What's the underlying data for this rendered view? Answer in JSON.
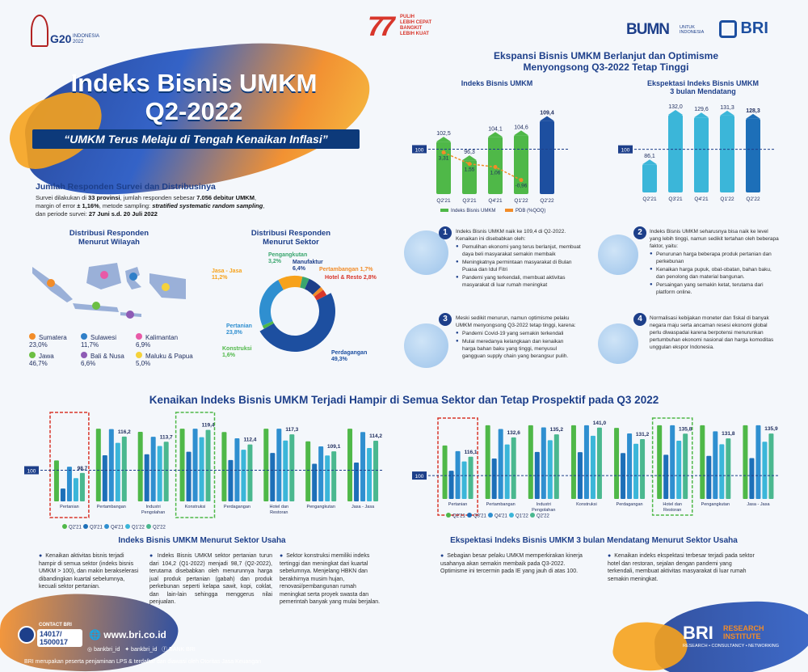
{
  "header": {
    "g20_line1": "G20",
    "g20_line2": "INDONESIA",
    "g20_year": "2022",
    "ri77_number": "77",
    "ri77_line1": "PULIH",
    "ri77_line2": "LEBIH CEPAT",
    "ri77_line3": "BANGKIT",
    "ri77_line4": "LEBIH KUAT",
    "bumn": "BUMN",
    "bumn_sub1": "UNTUK",
    "bumn_sub2": "INDONESIA",
    "bri": "BRI"
  },
  "title": {
    "line1": "Indeks Bisnis UMKM",
    "line2": "Q2-2022",
    "subtitle": "“UMKM Terus Melaju di Tengah Kenaikan Inflasi”"
  },
  "respondents": {
    "heading": "Jumlah Responden Survei dan Distribusinya",
    "text_pre1": "Survei dilakukan di ",
    "text_bold1": "33 provinsi",
    "text_mid1": ", jumlah responden sebesar ",
    "text_bold2": "7.056 debitur UMKM",
    "text_mid2": ",",
    "text_line2_pre": "margin of error ",
    "text_bold3": "± 1,16%",
    "text_line2_mid": ", metode sampling: ",
    "text_bold4": "stratified systematic random sampling",
    "text_line2_end": ",",
    "text_line3_pre": "dan periode survei: ",
    "text_bold5": "27 Juni s.d. 20 Juli 2022"
  },
  "region": {
    "heading1": "Distribusi Responden",
    "heading2": "Menurut Wilayah",
    "items": [
      {
        "label": "Sumatera",
        "value": "23,0%",
        "color": "#f28c28"
      },
      {
        "label": "Sulawesi",
        "value": "11,7%",
        "color": "#2f7fc8"
      },
      {
        "label": "Kalimantan",
        "value": "6,9%",
        "color": "#e85aa7"
      },
      {
        "label": "Jawa",
        "value": "46,7%",
        "color": "#6cbf43"
      },
      {
        "label": "Bali & Nusa",
        "value": "6,6%",
        "color": "#8e5bb5"
      },
      {
        "label": "Maluku & Papua",
        "value": "5,0%",
        "color": "#f5d23a"
      }
    ]
  },
  "sector_dist": {
    "heading1": "Distribusi Responden",
    "heading2": "Menurut Sektor",
    "slices": [
      {
        "label": "Perdagangan",
        "value": "49,3%",
        "pct": 49.3,
        "color": "#1d4fa0"
      },
      {
        "label": "Konstruksi",
        "value": "1,6%",
        "pct": 1.6,
        "color": "#4fb848"
      },
      {
        "label": "Pertanian",
        "value": "23,8%",
        "pct": 23.8,
        "color": "#2f8fd0"
      },
      {
        "label": "Jasa - Jasa",
        "value": "11,2%",
        "pct": 11.2,
        "color": "#f7a21b"
      },
      {
        "label": "Pengangkutan",
        "value": "3,2%",
        "pct": 3.2,
        "color": "#3aa66e"
      },
      {
        "label": "Manufaktur",
        "value": "6,4%",
        "pct": 6.4,
        "color": "#1d3f8a"
      },
      {
        "label": "Pertambangan",
        "value": "1,7%",
        "pct": 1.7,
        "color": "#f28c28"
      },
      {
        "label": "Hotel & Resto",
        "value": "2,8%",
        "pct": 2.8,
        "color": "#d8362b"
      }
    ]
  },
  "expansion": {
    "heading1": "Ekspansi Bisnis UMKM Berlanjut dan Optimisme",
    "heading2": "Menyongsong Q3-2022 Tetap Tinggi"
  },
  "chart_data": [
    {
      "type": "bar",
      "title": "Indeks Bisnis UMKM",
      "categories": [
        "Q2'21",
        "Q3'21",
        "Q4'21",
        "Q1'22",
        "Q2'22"
      ],
      "series": [
        {
          "name": "Indeks Bisnis UMKM",
          "values": [
            102.5,
            96.3,
            104.1,
            104.6,
            109.4
          ]
        },
        {
          "name": "PDB (%QOQ)",
          "values": [
            3.31,
            1.55,
            1.06,
            -0.96,
            null
          ]
        }
      ],
      "value_labels": [
        "102,5",
        "96,3",
        "104,1",
        "104,6",
        "109,4"
      ],
      "pdb_labels": [
        "3,31",
        "1,55",
        "1,06",
        "-0,96"
      ],
      "reference_line": 100,
      "reference_label": "100",
      "legend": [
        "Indeks Bisnis UMKM",
        "PDB (%QOQ)"
      ]
    },
    {
      "type": "bar",
      "title": "Ekspektasi Indeks Bisnis UMKM",
      "title2": "3 bulan Mendatang",
      "categories": [
        "Q2'21",
        "Q3'21",
        "Q4'21",
        "Q1'22",
        "Q2'22"
      ],
      "values": [
        86.1,
        132.0,
        129.6,
        131.3,
        128.3
      ],
      "value_labels": [
        "86,1",
        "132,0",
        "129,6",
        "131,3",
        "128,3"
      ],
      "reference_line": 100,
      "reference_label": "100"
    },
    {
      "type": "bar",
      "title": "Indeks Bisnis UMKM Menurut Sektor Usaha",
      "categories": [
        "Pertanian",
        "Pertambangan",
        "Industri Pengolahan",
        "Konstruksi",
        "Perdagangan",
        "Hotel dan Restoran",
        "Pengangkutan",
        "Jasa - Jasa"
      ],
      "series_names": [
        "Q2'21",
        "Q3'21",
        "Q4'21",
        "Q1'22",
        "Q2'22"
      ],
      "latest_labels": [
        "98,7",
        "116,2",
        "113,7",
        "119,4",
        "112,4",
        "117,3",
        "109,1",
        "114,2"
      ],
      "latest_values": [
        98.7,
        116.2,
        113.7,
        119.4,
        112.4,
        117.3,
        109.1,
        114.2
      ],
      "reference_line": 100,
      "reference_label": "100"
    },
    {
      "type": "bar",
      "title": "Ekspektasi Indeks Bisnis UMKM 3 bulan Mendatang Menurut Sektor Usaha",
      "categories": [
        "Pertanian",
        "Pertambangan",
        "Industri Pengolahan",
        "Konstruksi",
        "Perdagangan",
        "Hotel dan Restoran",
        "Pengangkutan",
        "Jasa - Jasa"
      ],
      "series_names": [
        "Q2'21",
        "Q3'21",
        "Q4'21",
        "Q1'22",
        "Q2'22"
      ],
      "latest_labels": [
        "116,1",
        "132,6",
        "135,2",
        "141,0",
        "131,2",
        "135,8",
        "131,8",
        "135,9"
      ],
      "latest_values": [
        116.1,
        132.6,
        135.2,
        141.0,
        131.2,
        135.8,
        131.8,
        135.9
      ],
      "reference_line": 100,
      "reference_label": "100"
    }
  ],
  "points": {
    "p1_intro": "Indeks Bisnis UMKM naik ke 109,4 di Q2-2022.",
    "p1_sub": "Kenaikan ini disebabkan oleh:",
    "p1_items": [
      "Pemulihan ekonomi yang terus berlanjut, membuat daya beli masyarakat semakin membaik",
      "Meningkatnya permintaan masyarakat di Bulan Puasa dan Idul Fitri",
      "Pandemi yang terkendali, membuat aktivitas masyarakat di luar rumah meningkat"
    ],
    "p2_intro": "Indeks Bisnis UMKM seharusnya bisa naik ke level yang lebih tinggi, namun sedikit tertahan oleh beberapa faktor, yaitu:",
    "p2_items": [
      "Penurunan harga beberapa produk pertanian dan perkebunan",
      "Kenaikan harga pupuk, obat-obatan, bahan baku, dan penolong dan material bangunan.",
      "Persaingan yang semakin ketat, terutama dari platform online."
    ],
    "p3_intro": "Meski sedikit menurun, namun optimisme pelaku UMKM menyongsong Q3-2022 tetap tinggi, karena:",
    "p3_items": [
      "Pandemi Covid-19 yang semakin terkendali",
      "Mulai meredanya kelangkaan dan kenaikan harga bahan baku yang tinggi, menyusul gangguan supply chain yang berangsur pulih."
    ],
    "p4_text": "Normalisasi kebijakan moneter dan fiskal di banyak negara maju serta ancaman resesi ekonomi global perlu diwaspadai karena berpotensi menurunkan pertumbuhan ekonomi nasional dan harga komoditas unggulan ekspor Indonesia."
  },
  "sector_heading": "Kenaikan Indeks Bisnis UMKM Terjadi Hampir di Semua Sektor dan Tetap Prospektif pada Q3 2022",
  "legend_quarters": [
    "Q2'21",
    "Q3'21",
    "Q4'21",
    "Q1'22",
    "Q2'22"
  ],
  "bottom_left": {
    "heading": "Indeks Bisnis UMKM Menurut Sektor Usaha",
    "col1": "Kenaikan aktivitas bisnis terjadi hampir di semua sektor (indeks bisnis UMKM > 100), dan makin berakselerasi dibandingkan kuartal sebelumnya, kecuali sektor pertanian.",
    "col2": "Indeks Bisnis UMKM sektor pertanian turun dari 104,2 (Q1-2022) menjadi 98,7 (Q2-2022), terutama disebabkan oleh menurunnya harga jual produk pertanian (gabah) dan produk perkebunan seperti kelapa sawit, kopi, coklat, dan lain-lain sehingga menggerus nilai penjualan.",
    "col3": "Sektor konstruksi memiliki indeks tertinggi dan meningkat dari kuartal sebelumnya. Menjelang HBKN dan berakhirnya musim hujan, renovasi/pembangunan rumah meningkat serta proyek swasta dan pemerintah banyak yang mulai berjalan."
  },
  "bottom_right": {
    "heading": "Ekspektasi Indeks Bisnis UMKM 3 bulan Mendatang Menurut Sektor Usaha",
    "col1": "Sebagian besar pelaku UMKM memperkirakan kinerja usahanya akan semakin membaik pada Q3-2022. Optimisme ini tercermin pada IE yang jauh di atas 100.",
    "col2": "Kenaikan indeks ekspektasi terbesar terjadi pada sektor hotel dan restoran, sejalan dengan pandemi yang terkendali, membuat aktivitas masyarakat di luar rumah semakin meningkat."
  },
  "footer": {
    "contact_label": "CONTACT BRI",
    "phone1": "14017/",
    "phone2": "1500017",
    "website": "www.bri.co.id",
    "social1": "bankbri_id",
    "social2": "bankbri_id",
    "social3": "BANK BRI",
    "disclaimer": "BRI merupakan peserta penjaminan LPS & terdaftar dan diawasi oleh Otoritas Jasa Keuangan",
    "bri_research1": "BRI",
    "bri_research2": "RESEARCH",
    "bri_research3": "INSTITUTE",
    "bri_research_tag": "RESEARCH • CONSULTANCY • NETWORKING"
  },
  "colors": {
    "navy": "#1d3f8a",
    "green": "#4fb848",
    "teal": "#3bb6d9",
    "orange": "#f28c28",
    "red": "#d8362b"
  }
}
